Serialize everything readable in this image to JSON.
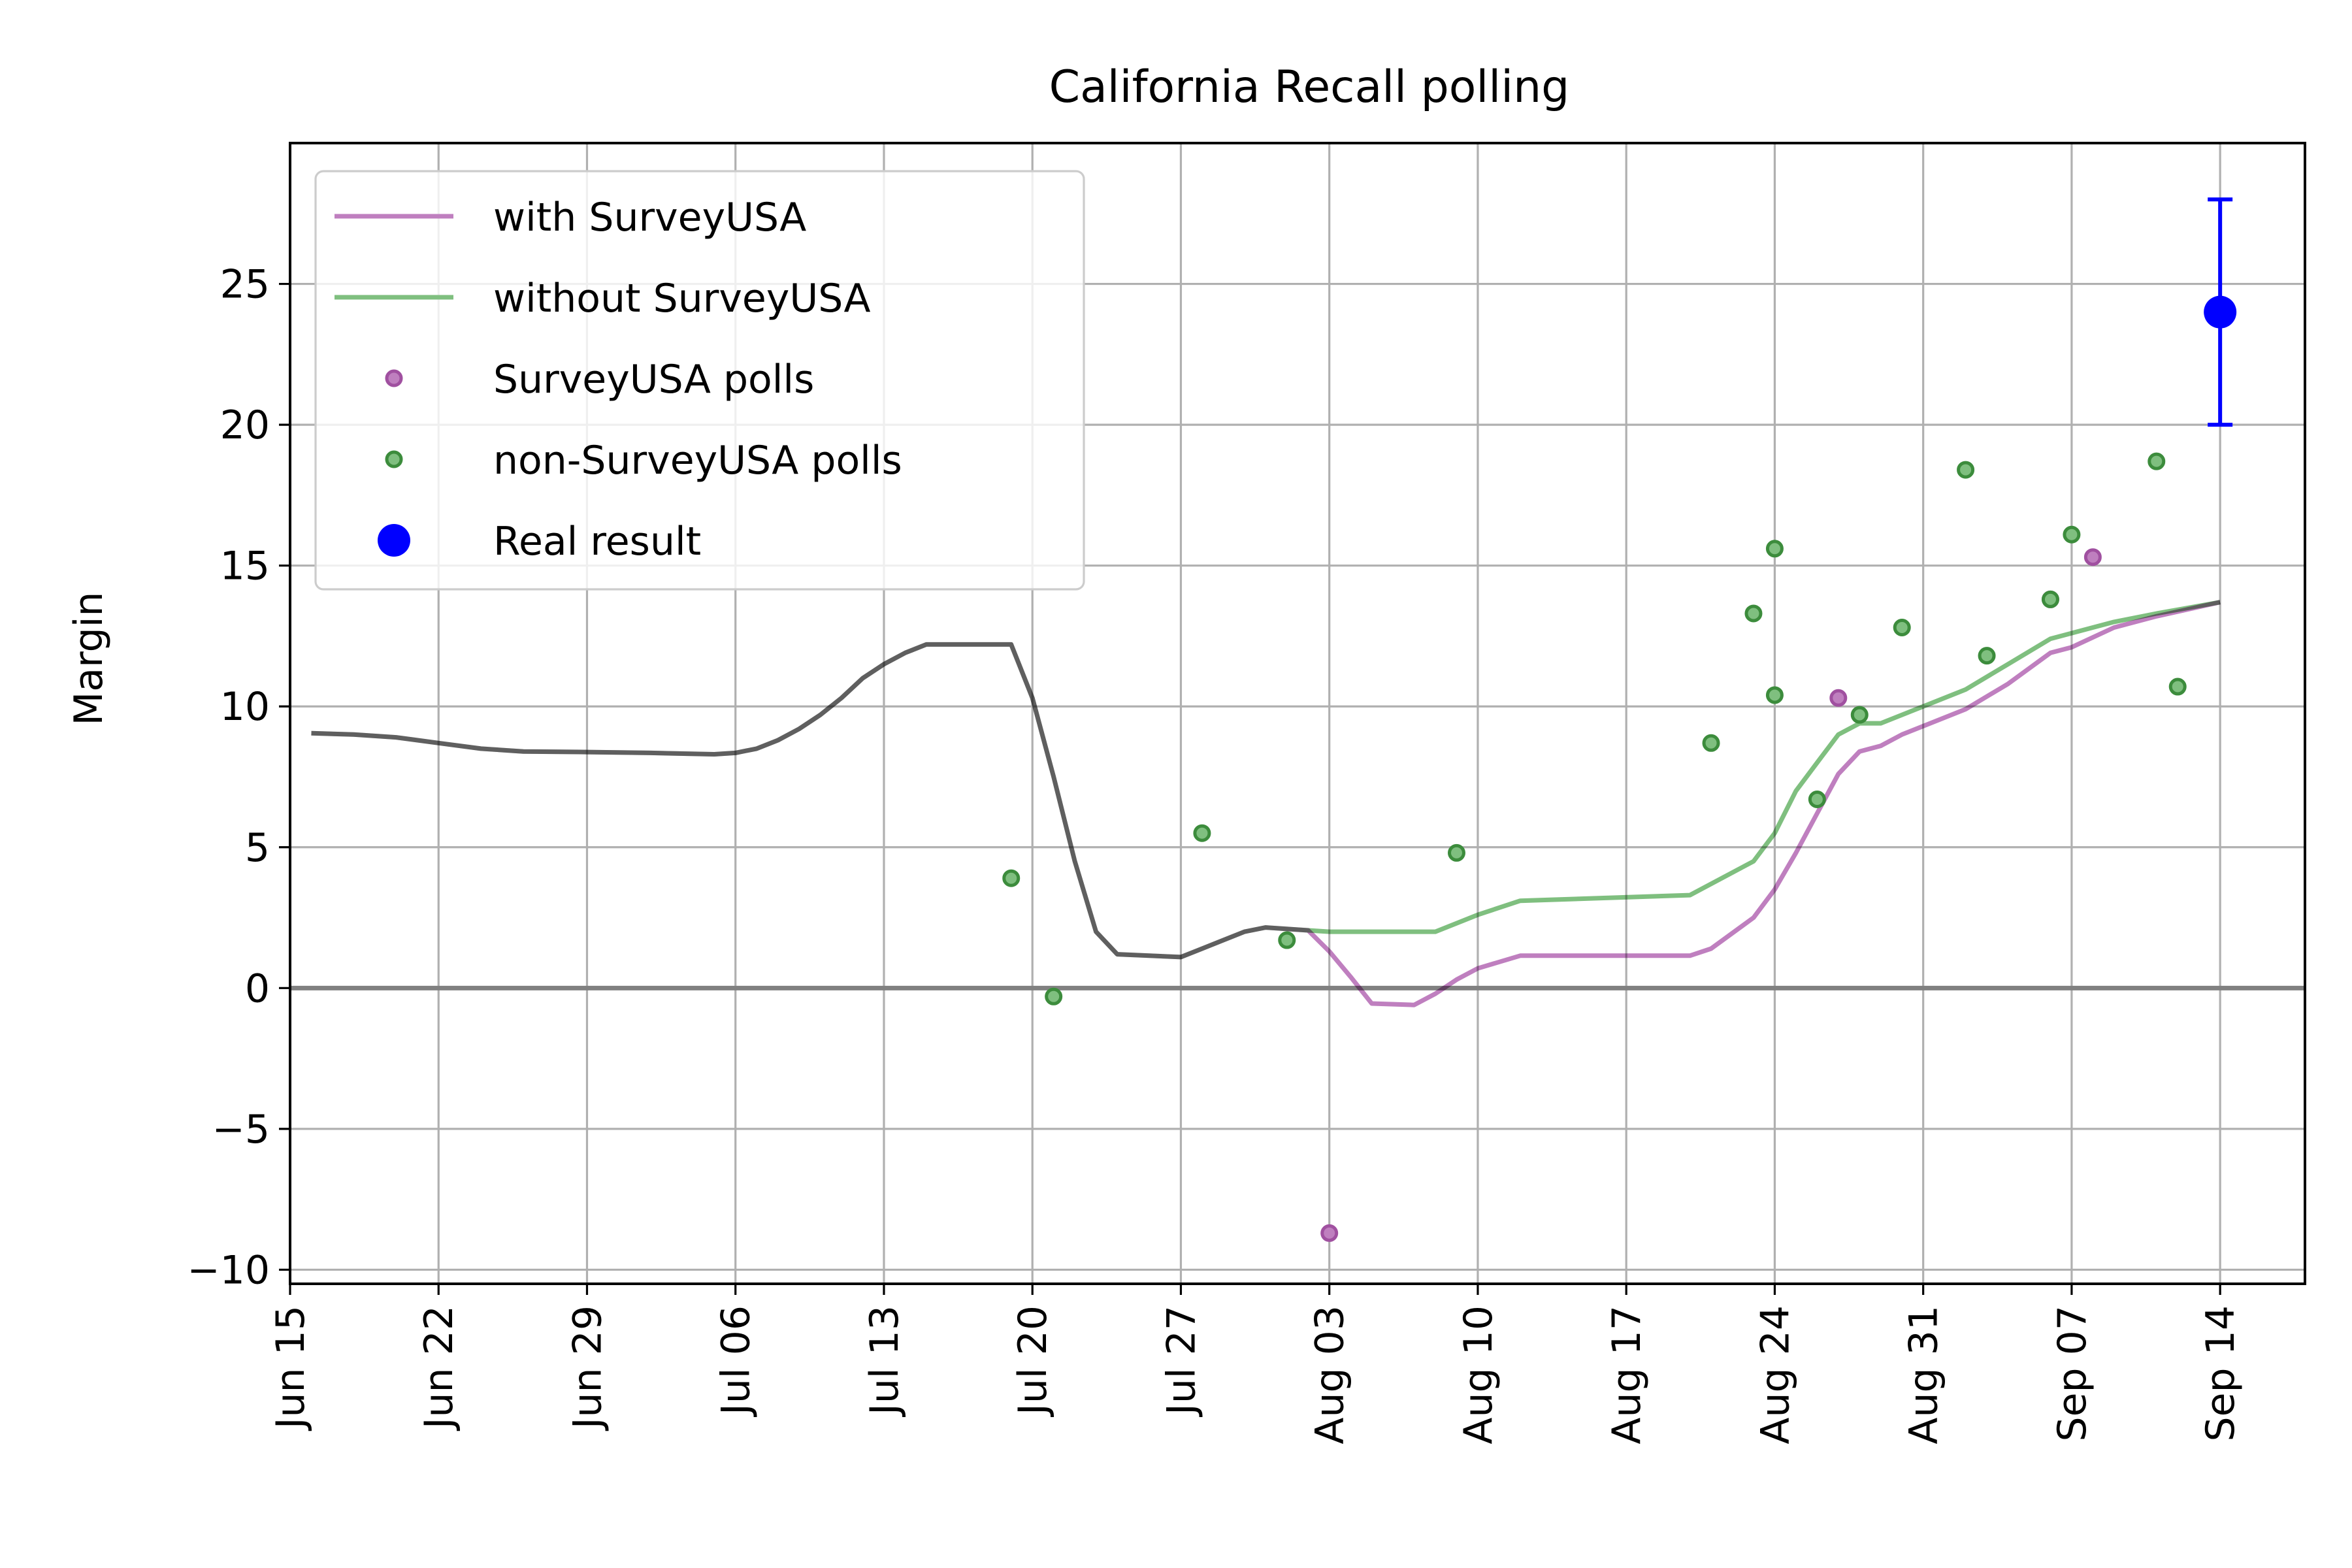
{
  "chart_data": {
    "type": "line",
    "title": "California Recall polling",
    "xlabel": "",
    "ylabel": "Margin",
    "x_axis": "date",
    "xlim": [
      "2021-06-15",
      "2021-09-18"
    ],
    "ylim": [
      -10.5,
      30
    ],
    "x_ticks": [
      "2021-06-15",
      "2021-06-22",
      "2021-06-29",
      "2021-07-06",
      "2021-07-13",
      "2021-07-20",
      "2021-07-27",
      "2021-08-03",
      "2021-08-10",
      "2021-08-17",
      "2021-08-24",
      "2021-08-31",
      "2021-09-07",
      "2021-09-14"
    ],
    "x_tick_labels": [
      "Jun 15",
      "Jun 22",
      "Jun 29",
      "Jul 06",
      "Jul 13",
      "Jul 20",
      "Jul 27",
      "Aug 03",
      "Aug 10",
      "Aug 17",
      "Aug 24",
      "Aug 31",
      "Sep 07",
      "Sep 14"
    ],
    "y_ticks": [
      -10,
      -5,
      0,
      5,
      10,
      15,
      20,
      25
    ],
    "y_tick_labels": [
      "−10",
      "−5",
      "0",
      "5",
      "10",
      "15",
      "20",
      "25"
    ],
    "grid": true,
    "legend_position": "top-left",
    "reference_line_y": 0,
    "series": [
      {
        "name": "with SurveyUSA",
        "kind": "line",
        "color": "#bf7fbf",
        "points": [
          [
            "2021-06-16",
            9.05
          ],
          [
            "2021-06-18",
            9.0
          ],
          [
            "2021-06-20",
            8.9
          ],
          [
            "2021-06-22",
            8.7
          ],
          [
            "2021-06-24",
            8.5
          ],
          [
            "2021-06-26",
            8.4
          ],
          [
            "2021-06-29",
            8.38
          ],
          [
            "2021-07-02",
            8.35
          ],
          [
            "2021-07-05",
            8.3
          ],
          [
            "2021-07-06",
            8.35
          ],
          [
            "2021-07-07",
            8.5
          ],
          [
            "2021-07-08",
            8.8
          ],
          [
            "2021-07-09",
            9.2
          ],
          [
            "2021-07-10",
            9.7
          ],
          [
            "2021-07-11",
            10.3
          ],
          [
            "2021-07-12",
            11.0
          ],
          [
            "2021-07-13",
            11.5
          ],
          [
            "2021-07-14",
            11.9
          ],
          [
            "2021-07-15",
            12.2
          ],
          [
            "2021-07-19",
            12.2
          ],
          [
            "2021-07-20",
            10.3
          ],
          [
            "2021-07-21",
            7.5
          ],
          [
            "2021-07-22",
            4.5
          ],
          [
            "2021-07-23",
            2.0
          ],
          [
            "2021-07-24",
            1.2
          ],
          [
            "2021-07-27",
            1.1
          ],
          [
            "2021-07-28",
            1.4
          ],
          [
            "2021-07-29",
            1.7
          ],
          [
            "2021-07-30",
            2.0
          ],
          [
            "2021-07-31",
            2.15
          ],
          [
            "2021-08-02",
            2.05
          ],
          [
            "2021-08-03",
            1.3
          ],
          [
            "2021-08-04",
            0.4
          ],
          [
            "2021-08-05",
            -0.55
          ],
          [
            "2021-08-07",
            -0.6
          ],
          [
            "2021-08-08",
            -0.2
          ],
          [
            "2021-08-09",
            0.3
          ],
          [
            "2021-08-10",
            0.7
          ],
          [
            "2021-08-12",
            1.15
          ],
          [
            "2021-08-20",
            1.15
          ],
          [
            "2021-08-21",
            1.4
          ],
          [
            "2021-08-23",
            2.5
          ],
          [
            "2021-08-24",
            3.5
          ],
          [
            "2021-08-25",
            4.8
          ],
          [
            "2021-08-26",
            6.2
          ],
          [
            "2021-08-27",
            7.6
          ],
          [
            "2021-08-28",
            8.4
          ],
          [
            "2021-08-29",
            8.6
          ],
          [
            "2021-08-30",
            9.0
          ],
          [
            "2021-08-31",
            9.3
          ],
          [
            "2021-09-02",
            9.9
          ],
          [
            "2021-09-04",
            10.8
          ],
          [
            "2021-09-06",
            11.9
          ],
          [
            "2021-09-07",
            12.1
          ],
          [
            "2021-09-09",
            12.8
          ],
          [
            "2021-09-11",
            13.2
          ],
          [
            "2021-09-14",
            13.7
          ]
        ]
      },
      {
        "name": "without SurveyUSA",
        "kind": "line",
        "color": "#7fbf7f",
        "points": [
          [
            "2021-06-16",
            9.05
          ],
          [
            "2021-06-18",
            9.0
          ],
          [
            "2021-06-20",
            8.9
          ],
          [
            "2021-06-22",
            8.7
          ],
          [
            "2021-06-24",
            8.5
          ],
          [
            "2021-06-26",
            8.4
          ],
          [
            "2021-06-29",
            8.38
          ],
          [
            "2021-07-02",
            8.35
          ],
          [
            "2021-07-05",
            8.3
          ],
          [
            "2021-07-06",
            8.35
          ],
          [
            "2021-07-07",
            8.5
          ],
          [
            "2021-07-08",
            8.8
          ],
          [
            "2021-07-09",
            9.2
          ],
          [
            "2021-07-10",
            9.7
          ],
          [
            "2021-07-11",
            10.3
          ],
          [
            "2021-07-12",
            11.0
          ],
          [
            "2021-07-13",
            11.5
          ],
          [
            "2021-07-14",
            11.9
          ],
          [
            "2021-07-15",
            12.2
          ],
          [
            "2021-07-19",
            12.2
          ],
          [
            "2021-07-20",
            10.3
          ],
          [
            "2021-07-21",
            7.5
          ],
          [
            "2021-07-22",
            4.5
          ],
          [
            "2021-07-23",
            2.0
          ],
          [
            "2021-07-24",
            1.2
          ],
          [
            "2021-07-27",
            1.1
          ],
          [
            "2021-07-28",
            1.4
          ],
          [
            "2021-07-29",
            1.7
          ],
          [
            "2021-07-30",
            2.0
          ],
          [
            "2021-07-31",
            2.15
          ],
          [
            "2021-08-02",
            2.05
          ],
          [
            "2021-08-03",
            2.0
          ],
          [
            "2021-08-08",
            2.0
          ],
          [
            "2021-08-10",
            2.6
          ],
          [
            "2021-08-12",
            3.1
          ],
          [
            "2021-08-20",
            3.3
          ],
          [
            "2021-08-23",
            4.5
          ],
          [
            "2021-08-24",
            5.5
          ],
          [
            "2021-08-25",
            7.0
          ],
          [
            "2021-08-26",
            8.0
          ],
          [
            "2021-08-27",
            9.0
          ],
          [
            "2021-08-28",
            9.4
          ],
          [
            "2021-08-29",
            9.4
          ],
          [
            "2021-08-31",
            10.0
          ],
          [
            "2021-09-02",
            10.6
          ],
          [
            "2021-09-04",
            11.5
          ],
          [
            "2021-09-06",
            12.4
          ],
          [
            "2021-09-07",
            12.6
          ],
          [
            "2021-09-09",
            13.0
          ],
          [
            "2021-09-11",
            13.3
          ],
          [
            "2021-09-14",
            13.7
          ]
        ]
      },
      {
        "name": "SurveyUSA polls",
        "kind": "scatter",
        "color": "#bf7fbf",
        "edge_color": "#a050a0",
        "points": [
          [
            "2021-08-03",
            -8.7
          ],
          [
            "2021-08-27",
            10.3
          ],
          [
            "2021-09-08",
            15.3
          ],
          [
            "2021-09-06",
            13.8
          ]
        ]
      },
      {
        "name": "non-SurveyUSA polls",
        "kind": "scatter",
        "color": "#7fbf7f",
        "edge_color": "#3c8c3c",
        "points": [
          [
            "2021-07-19",
            3.9
          ],
          [
            "2021-07-21",
            -0.3
          ],
          [
            "2021-07-28",
            5.5
          ],
          [
            "2021-08-01",
            1.7
          ],
          [
            "2021-08-09",
            4.8
          ],
          [
            "2021-08-21",
            8.7
          ],
          [
            "2021-08-23",
            13.3
          ],
          [
            "2021-08-24",
            10.4
          ],
          [
            "2021-08-24",
            15.6
          ],
          [
            "2021-08-26",
            6.7
          ],
          [
            "2021-08-28",
            9.7
          ],
          [
            "2021-08-30",
            12.8
          ],
          [
            "2021-09-02",
            18.4
          ],
          [
            "2021-09-03",
            11.8
          ],
          [
            "2021-09-06",
            13.8
          ],
          [
            "2021-09-07",
            16.1
          ],
          [
            "2021-09-11",
            18.7
          ],
          [
            "2021-09-12",
            10.7
          ]
        ]
      },
      {
        "name": "Real result",
        "kind": "errorbar",
        "color": "#0000ff",
        "points": [
          [
            "2021-09-14",
            24.0
          ]
        ],
        "error_low": 20.0,
        "error_high": 28.0
      }
    ],
    "legend": [
      {
        "label": "with SurveyUSA",
        "marker": "line",
        "color": "#bf7fbf"
      },
      {
        "label": "without SurveyUSA",
        "marker": "line",
        "color": "#7fbf7f"
      },
      {
        "label": "SurveyUSA polls",
        "marker": "small-dot",
        "color": "#bf7fbf"
      },
      {
        "label": "non-SurveyUSA polls",
        "marker": "small-dot",
        "color": "#7fbf7f"
      },
      {
        "label": "Real result",
        "marker": "big-dot",
        "color": "#0000ff"
      }
    ]
  }
}
